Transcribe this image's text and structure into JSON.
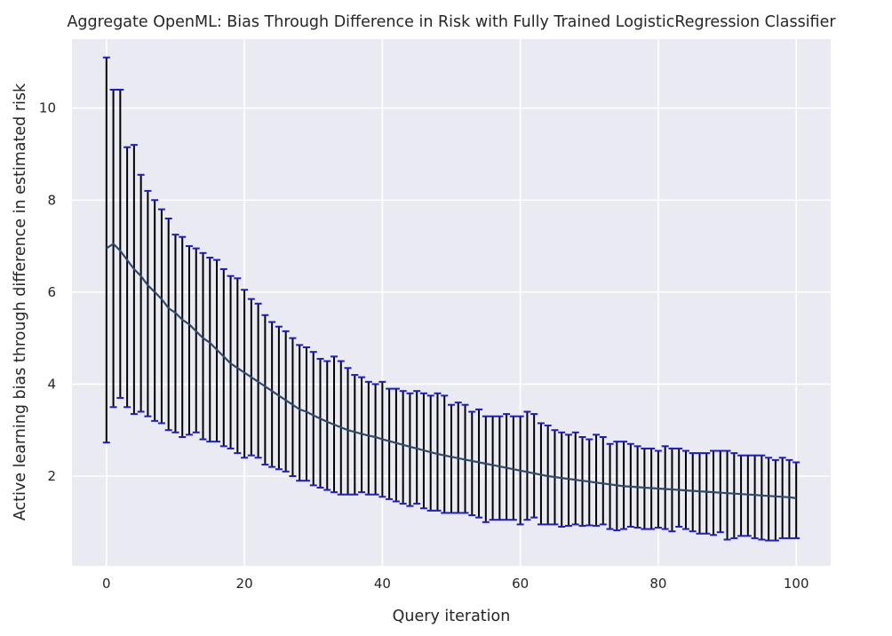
{
  "chart_data": {
    "type": "line",
    "title": "Aggregate OpenML: Bias Through Difference in Risk with Fully Trained LogisticRegression Classifier",
    "xlabel": "Query iteration",
    "ylabel": "Active learning bias through difference in estimated risk",
    "xlim": [
      -5,
      105
    ],
    "ylim": [
      0.05,
      11.5
    ],
    "xticks": [
      0,
      20,
      40,
      60,
      80,
      100
    ],
    "yticks": [
      2,
      4,
      6,
      8,
      10
    ],
    "grid": true,
    "error_bars": true,
    "colors": {
      "background": "#eaeaf2",
      "grid": "#ffffff",
      "line": "#2e4a6e",
      "errorbar": "#000000",
      "cap": "#1c1ccc"
    },
    "x": [
      0,
      1,
      2,
      3,
      4,
      5,
      6,
      7,
      8,
      9,
      10,
      11,
      12,
      13,
      14,
      15,
      16,
      17,
      18,
      19,
      20,
      21,
      22,
      23,
      24,
      25,
      26,
      27,
      28,
      29,
      30,
      31,
      32,
      33,
      34,
      35,
      36,
      37,
      38,
      39,
      40,
      41,
      42,
      43,
      44,
      45,
      46,
      47,
      48,
      49,
      50,
      51,
      52,
      53,
      54,
      55,
      56,
      57,
      58,
      59,
      60,
      61,
      62,
      63,
      64,
      65,
      66,
      67,
      68,
      69,
      70,
      71,
      72,
      73,
      74,
      75,
      76,
      77,
      78,
      79,
      80,
      81,
      82,
      83,
      84,
      85,
      86,
      87,
      88,
      89,
      90,
      91,
      92,
      93,
      94,
      95,
      96,
      97,
      98,
      99,
      100
    ],
    "mean": [
      6.95,
      7.05,
      6.9,
      6.7,
      6.5,
      6.35,
      6.15,
      6.0,
      5.85,
      5.65,
      5.55,
      5.4,
      5.3,
      5.15,
      5.0,
      4.9,
      4.75,
      4.6,
      4.45,
      4.35,
      4.25,
      4.15,
      4.05,
      3.95,
      3.85,
      3.75,
      3.65,
      3.55,
      3.45,
      3.4,
      3.32,
      3.25,
      3.18,
      3.12,
      3.06,
      3.0,
      2.96,
      2.92,
      2.88,
      2.85,
      2.8,
      2.76,
      2.72,
      2.68,
      2.64,
      2.6,
      2.56,
      2.52,
      2.48,
      2.45,
      2.42,
      2.39,
      2.36,
      2.33,
      2.3,
      2.27,
      2.24,
      2.21,
      2.18,
      2.15,
      2.12,
      2.09,
      2.06,
      2.03,
      2.0,
      1.98,
      1.96,
      1.94,
      1.92,
      1.9,
      1.88,
      1.86,
      1.84,
      1.82,
      1.8,
      1.78,
      1.77,
      1.76,
      1.75,
      1.74,
      1.73,
      1.72,
      1.71,
      1.7,
      1.69,
      1.68,
      1.67,
      1.66,
      1.65,
      1.64,
      1.63,
      1.62,
      1.61,
      1.6,
      1.59,
      1.58,
      1.57,
      1.56,
      1.55,
      1.54,
      1.52
    ],
    "lower": [
      2.73,
      3.5,
      3.7,
      3.5,
      3.35,
      3.4,
      3.3,
      3.2,
      3.15,
      3.0,
      2.95,
      2.85,
      2.9,
      2.95,
      2.8,
      2.75,
      2.75,
      2.65,
      2.6,
      2.5,
      2.4,
      2.45,
      2.4,
      2.25,
      2.2,
      2.15,
      2.1,
      2.0,
      1.9,
      1.9,
      1.8,
      1.75,
      1.7,
      1.65,
      1.6,
      1.6,
      1.6,
      1.65,
      1.6,
      1.6,
      1.55,
      1.5,
      1.45,
      1.4,
      1.35,
      1.4,
      1.3,
      1.25,
      1.25,
      1.2,
      1.2,
      1.2,
      1.2,
      1.15,
      1.1,
      1.0,
      1.05,
      1.05,
      1.05,
      1.05,
      0.95,
      1.05,
      1.1,
      0.95,
      0.95,
      0.95,
      0.9,
      0.92,
      0.95,
      0.92,
      0.93,
      0.92,
      0.95,
      0.85,
      0.82,
      0.85,
      0.9,
      0.88,
      0.85,
      0.85,
      0.88,
      0.85,
      0.8,
      0.9,
      0.85,
      0.8,
      0.75,
      0.75,
      0.72,
      0.78,
      0.62,
      0.65,
      0.7,
      0.7,
      0.65,
      0.62,
      0.6,
      0.6,
      0.65,
      0.65,
      0.65
    ],
    "upper": [
      11.1,
      10.4,
      10.4,
      9.15,
      9.2,
      8.55,
      8.2,
      8.0,
      7.8,
      7.6,
      7.25,
      7.2,
      7.0,
      6.95,
      6.85,
      6.75,
      6.7,
      6.5,
      6.35,
      6.3,
      6.05,
      5.85,
      5.75,
      5.5,
      5.35,
      5.25,
      5.15,
      5.0,
      4.85,
      4.8,
      4.7,
      4.55,
      4.5,
      4.6,
      4.5,
      4.35,
      4.2,
      4.15,
      4.05,
      4.0,
      4.05,
      3.9,
      3.9,
      3.85,
      3.8,
      3.85,
      3.8,
      3.75,
      3.8,
      3.75,
      3.55,
      3.6,
      3.55,
      3.4,
      3.45,
      3.3,
      3.3,
      3.3,
      3.35,
      3.3,
      3.3,
      3.4,
      3.35,
      3.15,
      3.1,
      3.0,
      2.95,
      2.9,
      2.95,
      2.85,
      2.8,
      2.9,
      2.85,
      2.7,
      2.75,
      2.75,
      2.7,
      2.65,
      2.6,
      2.6,
      2.55,
      2.65,
      2.6,
      2.6,
      2.55,
      2.5,
      2.5,
      2.5,
      2.55,
      2.55,
      2.55,
      2.5,
      2.45,
      2.45,
      2.45,
      2.45,
      2.4,
      2.35,
      2.4,
      2.35,
      2.3
    ]
  }
}
